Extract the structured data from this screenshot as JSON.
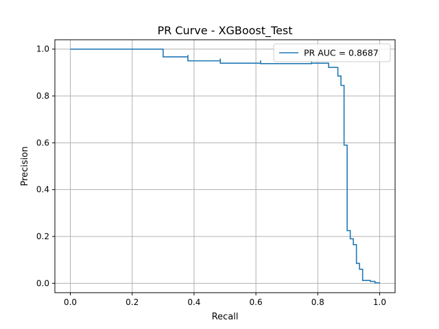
{
  "chart_data": {
    "type": "line",
    "title": "PR Curve - XGBoost_Test",
    "xlabel": "Recall",
    "ylabel": "Precision",
    "xlim": [
      -0.05,
      1.05
    ],
    "ylim": [
      -0.04,
      1.04
    ],
    "xticks": [
      0.0,
      0.2,
      0.4,
      0.6,
      0.8,
      1.0
    ],
    "xtick_labels": [
      "0.0",
      "0.2",
      "0.4",
      "0.6",
      "0.8",
      "1.0"
    ],
    "yticks": [
      0.0,
      0.2,
      0.4,
      0.6,
      0.8,
      1.0
    ],
    "ytick_labels": [
      "0.0",
      "0.2",
      "0.4",
      "0.6",
      "0.8",
      "1.0"
    ],
    "grid": true,
    "legend_position": "top-right",
    "series": [
      {
        "name": "PR AUC = 0.8687",
        "color": "#1f77b4",
        "step": "post",
        "x": [
          0.0,
          0.3,
          0.3,
          0.38,
          0.38,
          0.485,
          0.485,
          0.615,
          0.615,
          0.78,
          0.78,
          0.78,
          0.835,
          0.835,
          0.865,
          0.865,
          0.875,
          0.875,
          0.885,
          0.885,
          0.895,
          0.895,
          0.905,
          0.905,
          0.915,
          0.915,
          0.925,
          0.925,
          0.935,
          0.935,
          0.945,
          0.945,
          0.97,
          0.97,
          0.985,
          1.0
        ],
        "y": [
          1.0,
          1.0,
          0.967,
          0.975,
          0.95,
          0.96,
          0.94,
          0.952,
          0.938,
          0.95,
          0.95,
          0.94,
          0.942,
          0.922,
          0.923,
          0.885,
          0.885,
          0.845,
          0.845,
          0.59,
          0.59,
          0.225,
          0.225,
          0.19,
          0.19,
          0.165,
          0.165,
          0.085,
          0.085,
          0.06,
          0.06,
          0.012,
          0.012,
          0.008,
          0.002,
          0.0
        ]
      }
    ]
  }
}
